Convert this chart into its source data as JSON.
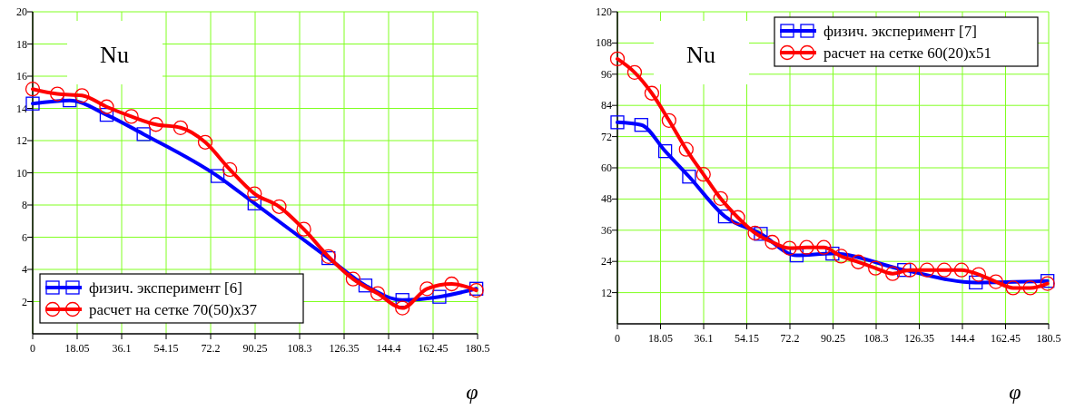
{
  "chart_data": [
    {
      "type": "line",
      "ylabel": "Nu",
      "xlabel": "φ",
      "xlim": [
        0,
        180.5
      ],
      "ylim": [
        0,
        20
      ],
      "xticks": [
        0,
        18.05,
        36.1,
        54.15,
        72.2,
        90.25,
        108.3,
        126.35,
        144.4,
        162.45,
        180.5
      ],
      "yticks": [
        2,
        4,
        6,
        8,
        10,
        12,
        14,
        16,
        18,
        20
      ],
      "grid": true,
      "legend": "bottom left",
      "series": [
        {
          "name": "физич. эксперимент [6]",
          "color": "#0000ff",
          "marker": "square",
          "x": [
            0,
            15,
            30,
            45,
            75,
            90,
            120,
            135,
            150,
            165,
            180
          ],
          "values": [
            14.3,
            14.5,
            13.6,
            12.4,
            9.8,
            8.1,
            4.7,
            3.0,
            2.1,
            2.3,
            2.8
          ]
        },
        {
          "name": "расчет на сетке 70(50)x37",
          "color": "#ff0000",
          "marker": "circle",
          "x": [
            0,
            10,
            20,
            30,
            40,
            50,
            60,
            70,
            80,
            90,
            100,
            110,
            120,
            130,
            140,
            150,
            160,
            170,
            180
          ],
          "values": [
            15.2,
            14.9,
            14.8,
            14.1,
            13.5,
            13.0,
            12.8,
            11.9,
            10.2,
            8.7,
            7.9,
            6.5,
            4.8,
            3.4,
            2.5,
            1.6,
            2.8,
            3.1,
            2.7
          ]
        }
      ]
    },
    {
      "type": "line",
      "ylabel": "Nu",
      "xlabel": "φ",
      "xlim": [
        0,
        180.5
      ],
      "ylim": [
        0,
        120
      ],
      "xticks": [
        0,
        18.05,
        36.1,
        54.15,
        72.2,
        90.25,
        108.3,
        126.35,
        144.4,
        162.45,
        180.5
      ],
      "yticks": [
        12,
        24,
        36,
        48,
        60,
        72,
        84,
        96,
        108,
        120
      ],
      "grid": true,
      "legend": "top right",
      "series": [
        {
          "name": "физич. эксперимент [7]",
          "color": "#0000ff",
          "marker": "square",
          "x": [
            0,
            10,
            20,
            30,
            45,
            60,
            75,
            90,
            120,
            150,
            180
          ],
          "values": [
            77.5,
            76.5,
            66.4,
            56.6,
            41.3,
            34.6,
            26.3,
            27.0,
            20.7,
            15.9,
            16.5
          ]
        },
        {
          "name": "расчет на сетке 60(20)x51",
          "color": "#ff0000",
          "marker": "circle",
          "x": [
            0,
            7.2,
            14.4,
            21.6,
            28.8,
            36,
            43.2,
            50.4,
            57.6,
            64.8,
            72,
            79.2,
            86.4,
            93.6,
            100.8,
            108,
            115.2,
            122.4,
            129.6,
            136.8,
            144,
            151.2,
            158.4,
            165.6,
            172.8,
            180
          ],
          "values": [
            101.9,
            96.7,
            88.7,
            78.2,
            67.1,
            57.5,
            48.2,
            40.9,
            34.9,
            31.4,
            29.1,
            29.4,
            29.4,
            26.0,
            23.8,
            21.4,
            19.3,
            20.7,
            20.7,
            20.7,
            20.7,
            19.0,
            16.2,
            13.8,
            13.8,
            15.5
          ]
        }
      ]
    }
  ]
}
